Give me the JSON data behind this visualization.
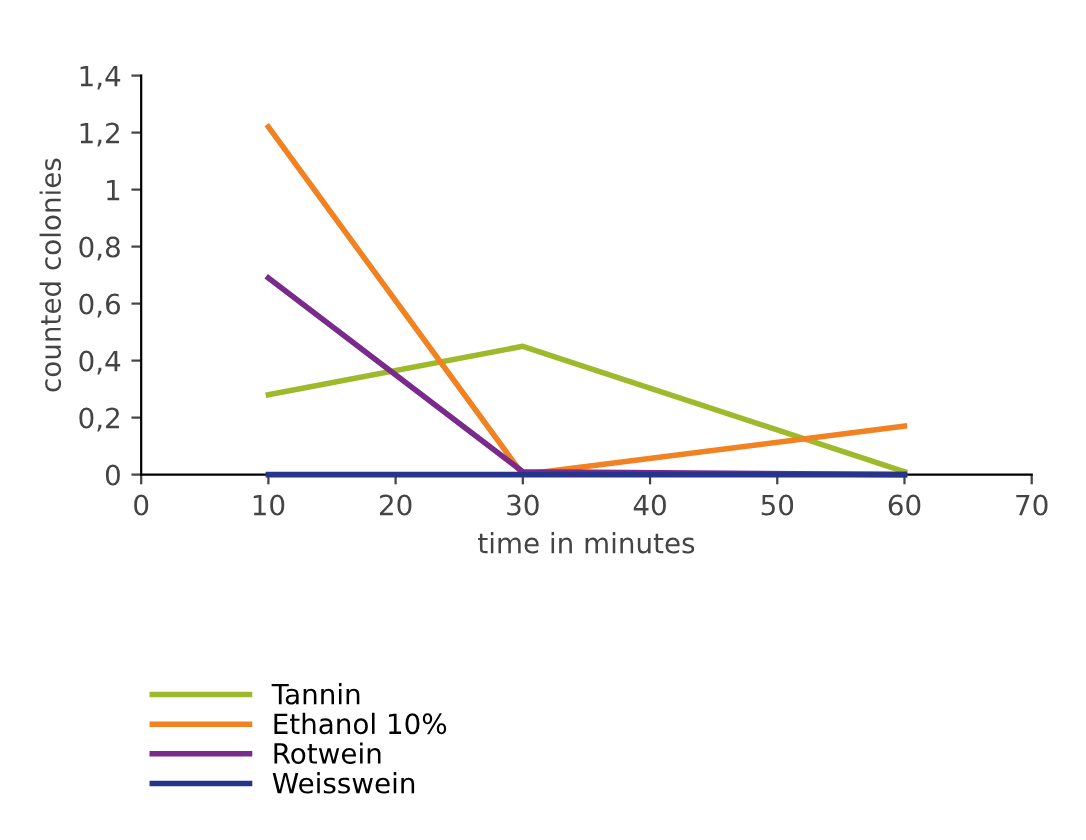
{
  "chart_data": {
    "type": "line",
    "xlabel": "time in minutes",
    "ylabel": "counted colonies",
    "x": [
      10,
      30,
      60
    ],
    "series": [
      {
        "name": "Tannin",
        "color": "#9dba2c",
        "values": [
          0.28,
          0.45,
          0.01
        ]
      },
      {
        "name": "Ethanol 10%",
        "color": "#f28121",
        "values": [
          1.22,
          0,
          0.17
        ]
      },
      {
        "name": "Rotwein",
        "color": "#7a2a8c",
        "values": [
          0.69,
          0.01,
          0
        ]
      },
      {
        "name": "Weisswein",
        "color": "#27348b",
        "values": [
          0,
          0,
          0
        ]
      }
    ],
    "xlim": [
      0,
      70
    ],
    "xticks": [
      0,
      10,
      20,
      30,
      40,
      50,
      60,
      70
    ],
    "ylim": [
      0,
      1.4
    ],
    "yticks": [
      0,
      {
        "value": 0.2,
        "label": "0,2"
      },
      {
        "value": 0.4,
        "label": "0,4"
      },
      {
        "value": 0.6,
        "label": "0,6"
      },
      {
        "value": 0.8,
        "label": "0,8"
      },
      1,
      {
        "value": 1.2,
        "label": "1,2"
      },
      {
        "value": 1.4,
        "label": "1,4"
      }
    ],
    "grid": false,
    "legend": "bottom",
    "marker": "none",
    "line_style": "solid"
  }
}
